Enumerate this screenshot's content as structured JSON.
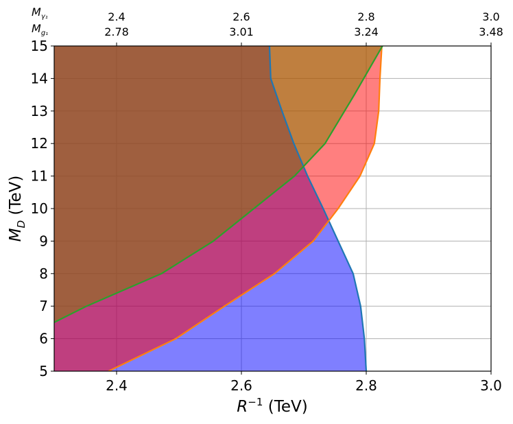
{
  "chart_data": {
    "type": "area",
    "title": "",
    "xlabel_base": "R",
    "xlabel_sup": "−1",
    "xlabel_unit": " (TeV)",
    "ylabel_base": "M",
    "ylabel_sub": "D",
    "ylabel_unit": " (TeV)",
    "xlim": [
      2.3,
      3.0
    ],
    "ylim": [
      5,
      15
    ],
    "grid": true,
    "x_ticks": [
      2.4,
      2.6,
      2.8,
      3.0
    ],
    "x_tick_labels": [
      "2.4",
      "2.6",
      "2.8",
      "3.0"
    ],
    "y_ticks": [
      5,
      6,
      7,
      8,
      9,
      10,
      11,
      12,
      13,
      14,
      15
    ],
    "y_tick_labels": [
      "5",
      "6",
      "7",
      "8",
      "9",
      "10",
      "11",
      "12",
      "13",
      "14",
      "15"
    ],
    "top_axis": {
      "row1_label_base": "M",
      "row1_label_sub": "γ₁",
      "row2_label_base": "M",
      "row2_label_sub": "g₁",
      "ticks": [
        2.4,
        2.6,
        2.8,
        3.0
      ],
      "row1_values": [
        "2.4",
        "2.6",
        "2.8",
        "3.0"
      ],
      "row2_values": [
        "2.78",
        "3.01",
        "3.24",
        "3.48"
      ]
    },
    "series": [
      {
        "line_color": "#1f77b4",
        "fill_color": "#0000ff",
        "fill_alpha": 0.5,
        "x": [
          2.8,
          2.797,
          2.791,
          2.779,
          2.755,
          2.731,
          2.706,
          2.684,
          2.665,
          2.647,
          2.646,
          2.645
        ],
        "y": [
          5.0,
          6.0,
          7.0,
          8.0,
          9.0,
          10.0,
          11.0,
          12.0,
          13.0,
          14.0,
          14.5,
          15.0
        ]
      },
      {
        "line_color": "#ff7f0e",
        "fill_color": "#ff0000",
        "fill_alpha": 0.5,
        "x": [
          2.387,
          2.495,
          2.573,
          2.653,
          2.715,
          2.755,
          2.79,
          2.813,
          2.82,
          2.822,
          2.825
        ],
        "y": [
          5.0,
          6.0,
          7.0,
          8.0,
          9.0,
          10.0,
          11.0,
          12.0,
          13.0,
          14.0,
          15.0
        ]
      },
      {
        "line_color": "#2ca02c",
        "fill_color": "#808000",
        "fill_alpha": 0.5,
        "x": [
          2.3,
          2.352,
          2.472,
          2.555,
          2.62,
          2.685,
          2.734,
          2.781,
          2.826
        ],
        "y": [
          6.5,
          7.0,
          8.0,
          9.0,
          10.0,
          11.0,
          12.0,
          13.5,
          15.0
        ]
      }
    ]
  }
}
